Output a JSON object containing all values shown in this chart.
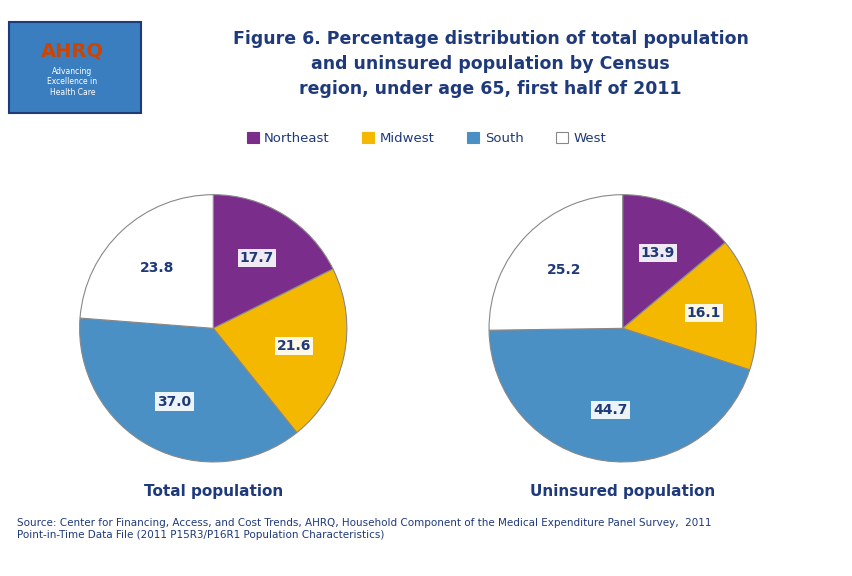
{
  "title": "Figure 6. Percentage distribution of total population\nand uninsured population by Census\nregion, under age 65, first half of 2011",
  "title_color": "#1F3A7A",
  "title_fontsize": 12.5,
  "chart1_label": "Total population",
  "chart2_label": "Uninsured population",
  "chart_label_color": "#1F3A7A",
  "chart_label_fontsize": 11,
  "regions": [
    "Northeast",
    "Midwest",
    "South",
    "West"
  ],
  "colors": [
    "#7B2D8B",
    "#F5B800",
    "#4A90C4",
    "#FFFFFF"
  ],
  "edge_color": "#888888",
  "total_values": [
    17.7,
    21.6,
    37.0,
    23.8
  ],
  "uninsured_values": [
    13.9,
    16.1,
    44.7,
    25.2
  ],
  "label_fontsize": 10,
  "label_color": "#1F3A7A",
  "legend_fontsize": 9.5,
  "source_text": "Source: Center for Financing, Access, and Cost Trends, AHRQ, Household Component of the Medical Expenditure Panel Survey,  2011\nPoint-in-Time Data File (2011 P15R3/P16R1 Population Characteristics)",
  "source_fontsize": 7.5,
  "source_color": "#1F3A7A",
  "bg_color": "#FFFFFF",
  "header_bar_color": "#1F3A7A",
  "logo_bg": "#3A7EBF",
  "logo_border": "#1F3A7A"
}
